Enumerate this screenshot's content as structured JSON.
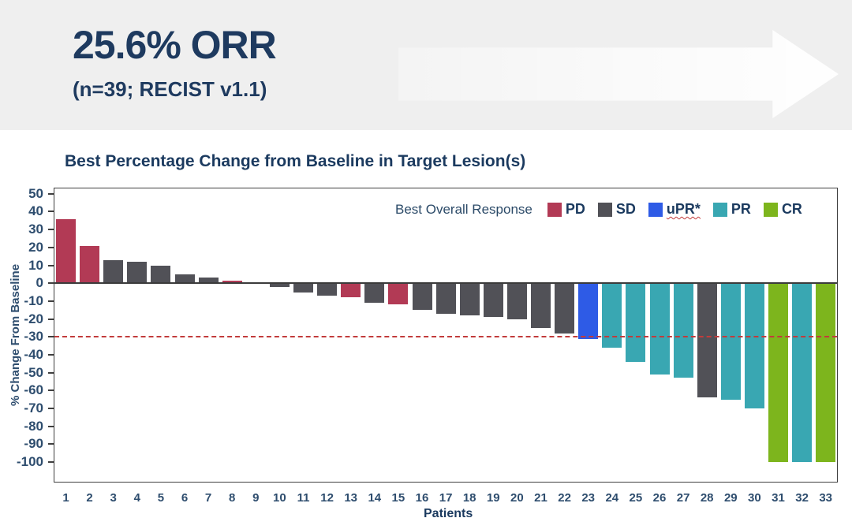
{
  "header": {
    "title": "25.6% ORR",
    "subtitle": "(n=39; RECIST v1.1)"
  },
  "chart": {
    "title": "Best Percentage Change from Baseline in Target Lesion(s)",
    "y_axis_label": "% Change From Baseline",
    "x_axis_label": "Patients",
    "legend": {
      "title": "Best Overall Response",
      "items": [
        {
          "label": "PD",
          "color": "#B23A55",
          "wavy_underline": false
        },
        {
          "label": "SD",
          "color": "#515157",
          "wavy_underline": false
        },
        {
          "label": "uPR*",
          "color": "#2E5BE6",
          "wavy_underline": true
        },
        {
          "label": "PR",
          "color": "#39A7B2",
          "wavy_underline": false
        },
        {
          "label": "CR",
          "color": "#7DB51D",
          "wavy_underline": false
        }
      ]
    },
    "reference_line": {
      "value": -30,
      "color": "#C23B3B",
      "style": "dashed"
    }
  },
  "chart_data": {
    "type": "bar",
    "title": "Best Percentage Change from Baseline in Target Lesion(s)",
    "xlabel": "Patients",
    "ylabel": "% Change From Baseline",
    "ylim": [
      -100,
      50
    ],
    "y_ticks": [
      50,
      40,
      30,
      20,
      10,
      0,
      -10,
      -20,
      -30,
      -40,
      -50,
      -60,
      -70,
      -80,
      -90,
      -100
    ],
    "reference_line_y": -30,
    "grid": false,
    "legend_position": "top-right-inside",
    "categories": [
      1,
      2,
      3,
      4,
      5,
      6,
      7,
      8,
      9,
      10,
      11,
      12,
      13,
      14,
      15,
      16,
      17,
      18,
      19,
      20,
      21,
      22,
      23,
      24,
      25,
      26,
      27,
      28,
      29,
      30,
      31,
      32,
      33
    ],
    "values": [
      36,
      21,
      13,
      12,
      10,
      5,
      3,
      1.5,
      0,
      -2,
      -5,
      -7,
      -8,
      -11,
      -12,
      -15,
      -17,
      -18,
      -19,
      -20,
      -25,
      -28,
      -31,
      -36,
      -44,
      -51,
      -53,
      -64,
      -65,
      -70,
      -100,
      -100,
      -100
    ],
    "responses": [
      "PD",
      "PD",
      "SD",
      "SD",
      "SD",
      "SD",
      "SD",
      "PD",
      "SD",
      "SD",
      "SD",
      "SD",
      "PD",
      "SD",
      "PD",
      "SD",
      "SD",
      "SD",
      "SD",
      "SD",
      "SD",
      "SD",
      "uPR",
      "PR",
      "PR",
      "PR",
      "PR",
      "SD",
      "PR",
      "PR",
      "CR",
      "PR",
      "CR"
    ],
    "response_colors": {
      "PD": "#B23A55",
      "SD": "#515157",
      "uPR": "#2E5BE6",
      "PR": "#39A7B2",
      "CR": "#7DB51D"
    }
  }
}
